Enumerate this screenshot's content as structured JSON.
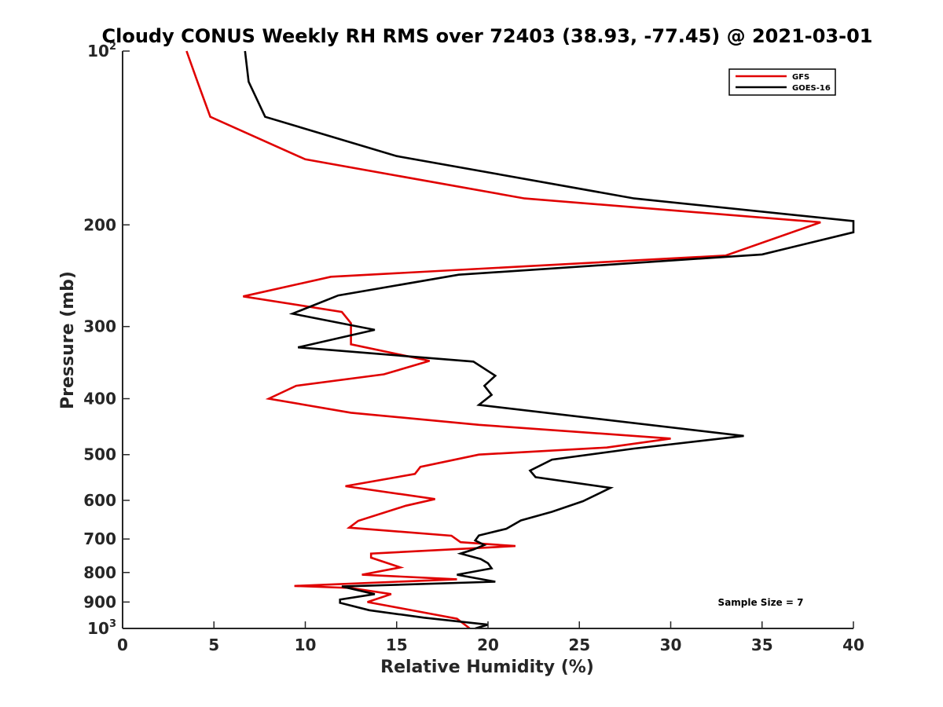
{
  "chart_data": {
    "type": "line",
    "title": "Cloudy CONUS Weekly RH RMS over 72403 (38.93, -77.45) @ 2021-03-01",
    "xlabel": "Relative Humidity (%)",
    "ylabel": "Pressure (mb)",
    "xlim": [
      0,
      40
    ],
    "ylim": [
      100,
      1000
    ],
    "yscale": "log",
    "yreversed": true,
    "x_ticks": [
      "0",
      "5",
      "10",
      "15",
      "20",
      "25",
      "30",
      "35",
      "40"
    ],
    "y_ticks": [
      {
        "value": 100,
        "base": "10",
        "exp": "2"
      },
      {
        "value": 200,
        "label": "200"
      },
      {
        "value": 300,
        "label": "300"
      },
      {
        "value": 400,
        "label": "400"
      },
      {
        "value": 500,
        "label": "500"
      },
      {
        "value": 600,
        "label": "600"
      },
      {
        "value": 700,
        "label": "700"
      },
      {
        "value": 800,
        "label": "800"
      },
      {
        "value": 900,
        "label": "900"
      },
      {
        "value": 1000,
        "base": "10",
        "exp": "3"
      }
    ],
    "grid": false,
    "legend": "top-right",
    "annotation": "Sample Size = 7",
    "series": [
      {
        "name": "GFS",
        "color": "#e00000",
        "points": [
          [
            3.5,
            100
          ],
          [
            4.1,
            113
          ],
          [
            4.8,
            130
          ],
          [
            10.0,
            154
          ],
          [
            22.0,
            180
          ],
          [
            38.2,
            198
          ],
          [
            33.0,
            226
          ],
          [
            11.4,
            246
          ],
          [
            6.6,
            266
          ],
          [
            12.0,
            283
          ],
          [
            12.5,
            296
          ],
          [
            12.5,
            322
          ],
          [
            16.8,
            344
          ],
          [
            14.3,
            363
          ],
          [
            9.5,
            380
          ],
          [
            8.0,
            400
          ],
          [
            12.5,
            423
          ],
          [
            19.5,
            444
          ],
          [
            30.0,
            469
          ],
          [
            26.5,
            486
          ],
          [
            19.5,
            500
          ],
          [
            16.3,
            525
          ],
          [
            16.0,
            540
          ],
          [
            12.2,
            567
          ],
          [
            17.1,
            597
          ],
          [
            15.5,
            613
          ],
          [
            12.9,
            651
          ],
          [
            12.4,
            669
          ],
          [
            18.0,
            691
          ],
          [
            18.5,
            709
          ],
          [
            21.5,
            720
          ],
          [
            13.6,
            742
          ],
          [
            13.6,
            754
          ],
          [
            15.2,
            784
          ],
          [
            13.1,
            807
          ],
          [
            18.3,
            822
          ],
          [
            9.4,
            844
          ],
          [
            12.5,
            851
          ],
          [
            14.7,
            872
          ],
          [
            13.4,
            900
          ],
          [
            15.2,
            922
          ],
          [
            18.3,
            962
          ],
          [
            19.0,
            1000
          ]
        ]
      },
      {
        "name": "GOES-16",
        "color": "#000000",
        "points": [
          [
            6.7,
            100
          ],
          [
            6.9,
            113
          ],
          [
            7.8,
            130
          ],
          [
            15.0,
            152
          ],
          [
            28.0,
            180
          ],
          [
            40.0,
            197
          ],
          [
            40.0,
            206
          ],
          [
            35.0,
            225
          ],
          [
            18.4,
            244
          ],
          [
            11.8,
            265
          ],
          [
            9.3,
            285
          ],
          [
            13.8,
            304
          ],
          [
            9.6,
            326
          ],
          [
            19.2,
            345
          ],
          [
            20.4,
            365
          ],
          [
            19.8,
            380
          ],
          [
            20.2,
            394
          ],
          [
            19.5,
            410
          ],
          [
            34.0,
            464
          ],
          [
            28.0,
            488
          ],
          [
            23.5,
            510
          ],
          [
            22.3,
            533
          ],
          [
            22.6,
            547
          ],
          [
            26.7,
            571
          ],
          [
            25.2,
            602
          ],
          [
            23.5,
            628
          ],
          [
            21.8,
            650
          ],
          [
            21.0,
            672
          ],
          [
            19.5,
            690
          ],
          [
            19.3,
            704
          ],
          [
            19.8,
            717
          ],
          [
            19.2,
            730
          ],
          [
            18.5,
            742
          ],
          [
            19.6,
            758
          ],
          [
            20.0,
            771
          ],
          [
            20.2,
            787
          ],
          [
            18.3,
            807
          ],
          [
            20.4,
            830
          ],
          [
            12.0,
            846
          ],
          [
            13.8,
            872
          ],
          [
            11.9,
            891
          ],
          [
            11.9,
            903
          ],
          [
            13.5,
            930
          ],
          [
            16.5,
            958
          ],
          [
            20.0,
            985
          ],
          [
            19.3,
            1000
          ]
        ]
      }
    ]
  }
}
